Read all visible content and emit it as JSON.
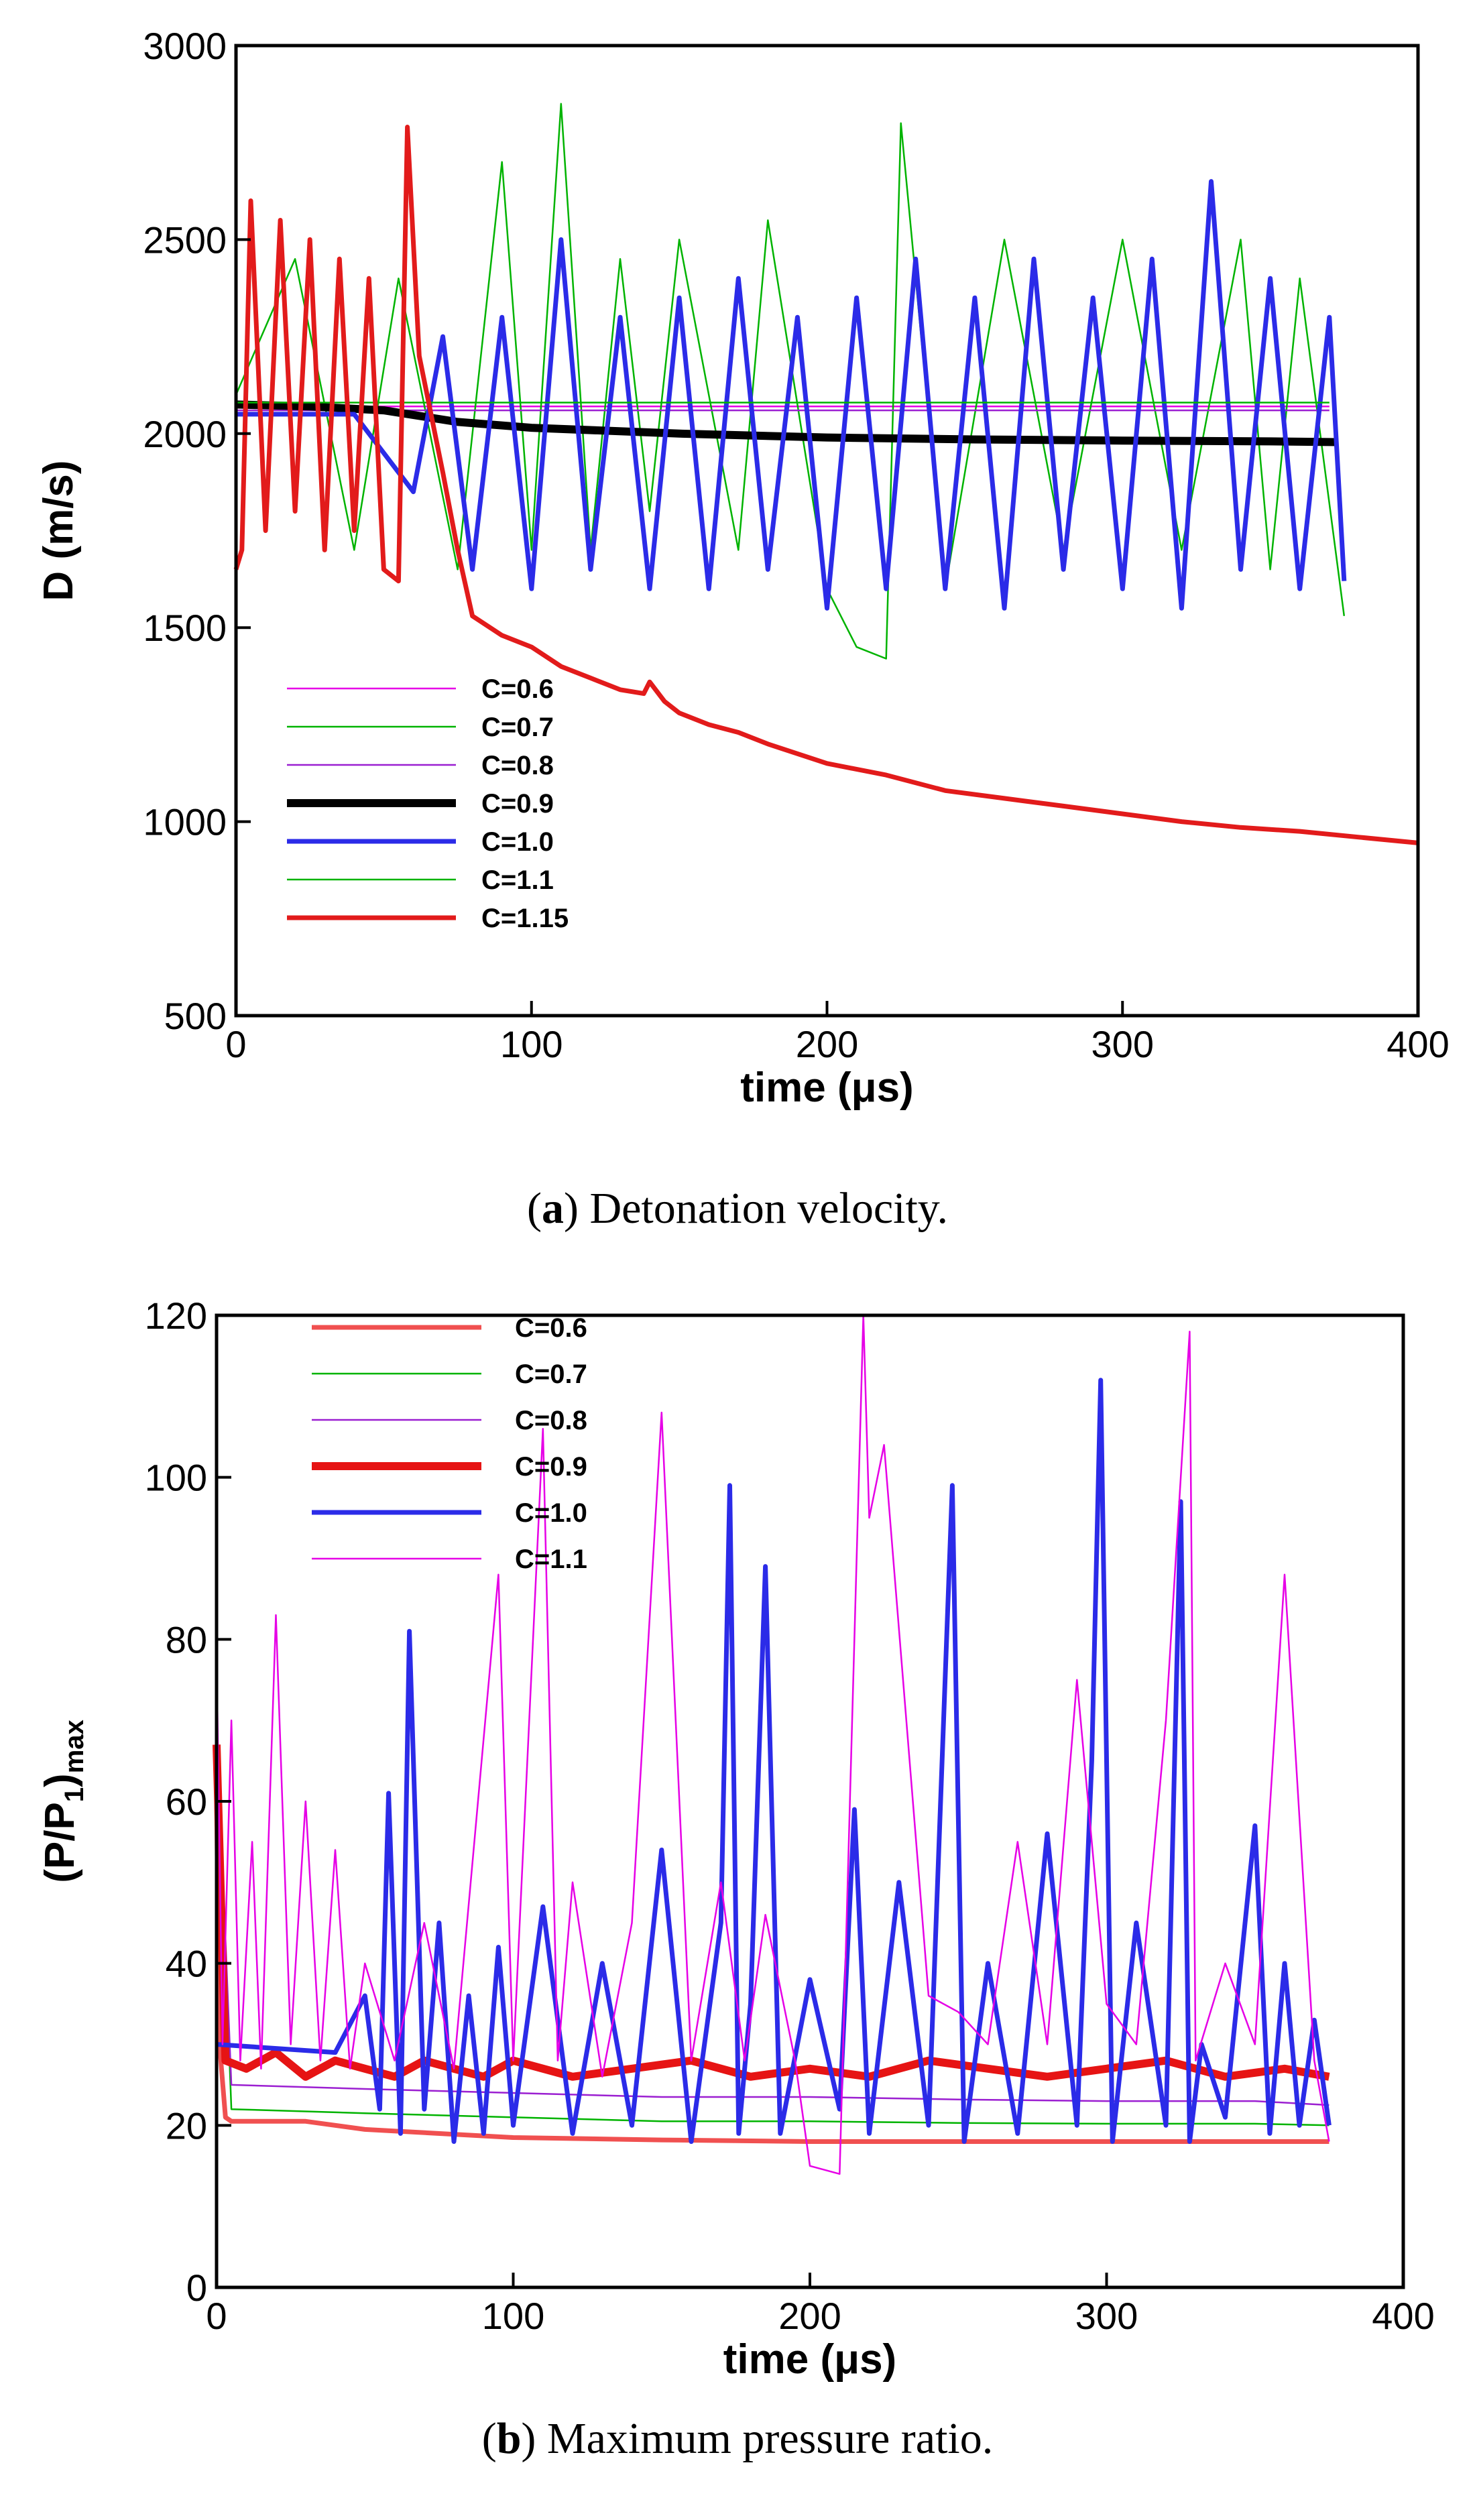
{
  "chart_data": [
    {
      "type": "line",
      "panel_letter": "a",
      "caption": "Detonation velocity.",
      "xlabel": "time (μs)",
      "ylabel": "D (m/s)",
      "xlim": [
        0,
        400
      ],
      "ylim": [
        500,
        3000
      ],
      "xticks": [
        "0",
        "100",
        "200",
        "300",
        "400"
      ],
      "yticks": [
        "500",
        "1000",
        "1500",
        "2000",
        "2500",
        "3000"
      ],
      "legend_position": "lower-left",
      "series": [
        {
          "name": "C=0.6",
          "color": "#e600e6",
          "style": "thin",
          "x": [
            0,
            370
          ],
          "y": [
            2070,
            2070
          ]
        },
        {
          "name": "C=0.7",
          "color": "#00b300",
          "style": "thin",
          "x": [
            0,
            20,
            40,
            55,
            75,
            90,
            100,
            110,
            120,
            130,
            140,
            150,
            170,
            180,
            200,
            210,
            220,
            225,
            240,
            260,
            280,
            300,
            320,
            340,
            350,
            360,
            375
          ],
          "y": [
            2100,
            2450,
            1700,
            2400,
            1650,
            2700,
            1700,
            2850,
            1700,
            2450,
            1800,
            2500,
            1700,
            2550,
            1600,
            1450,
            1420,
            2800,
            1600,
            2500,
            1700,
            2500,
            1700,
            2500,
            1650,
            2400,
            1530
          ]
        },
        {
          "name": "C=0.8",
          "color": "#9b1fd1",
          "style": "thin",
          "x": [
            0,
            370
          ],
          "y": [
            2060,
            2060
          ]
        },
        {
          "name": "C=0.9",
          "color": "#000000",
          "style": "thick",
          "x": [
            0,
            25,
            50,
            75,
            100,
            150,
            200,
            250,
            300,
            350,
            373
          ],
          "y": [
            2075,
            2070,
            2060,
            2030,
            2015,
            2000,
            1990,
            1985,
            1982,
            1980,
            1978
          ]
        },
        {
          "name": "C=1.0",
          "color": "#2b2be8",
          "style": "medium",
          "x": [
            0,
            40,
            60,
            70,
            80,
            90,
            100,
            110,
            120,
            130,
            140,
            150,
            160,
            170,
            180,
            190,
            200,
            210,
            220,
            230,
            240,
            250,
            260,
            270,
            280,
            290,
            300,
            310,
            320,
            330,
            340,
            350,
            360,
            370,
            375
          ],
          "y": [
            2050,
            2050,
            1850,
            2250,
            1650,
            2300,
            1600,
            2500,
            1650,
            2300,
            1600,
            2350,
            1600,
            2400,
            1650,
            2300,
            1550,
            2350,
            1600,
            2450,
            1600,
            2350,
            1550,
            2450,
            1650,
            2350,
            1600,
            2450,
            1550,
            2650,
            1650,
            2400,
            1600,
            2300,
            1620
          ]
        },
        {
          "name": "C=1.1",
          "color": "#00b300",
          "style": "thin",
          "x": [
            0,
            370
          ],
          "y": [
            2080,
            2080
          ]
        },
        {
          "name": "C=1.15",
          "color": "#e21b1b",
          "style": "medium",
          "x": [
            0,
            2,
            5,
            10,
            15,
            20,
            25,
            30,
            35,
            40,
            45,
            50,
            55,
            58,
            62,
            66,
            70,
            75,
            80,
            90,
            100,
            110,
            120,
            130,
            138,
            140,
            145,
            150,
            160,
            170,
            180,
            200,
            220,
            240,
            260,
            280,
            300,
            320,
            340,
            360,
            380,
            400
          ],
          "y": [
            1650,
            1700,
            2600,
            1750,
            2550,
            1800,
            2500,
            1700,
            2450,
            1750,
            2400,
            1650,
            1620,
            2790,
            2200,
            2050,
            1900,
            1700,
            1530,
            1480,
            1450,
            1400,
            1370,
            1340,
            1330,
            1360,
            1310,
            1280,
            1250,
            1230,
            1200,
            1150,
            1120,
            1080,
            1060,
            1040,
            1020,
            1000,
            985,
            975,
            960,
            945
          ]
        }
      ]
    },
    {
      "type": "line",
      "panel_letter": "b",
      "caption": "Maximum pressure ratio.",
      "xlabel": "time (μs)",
      "ylabel_main": "(P/P",
      "ylabel_sub1": "1",
      "ylabel_close": ")",
      "ylabel_sub2": "max",
      "xlim": [
        0,
        400
      ],
      "ylim": [
        0,
        120
      ],
      "xticks": [
        "0",
        "100",
        "200",
        "300",
        "400"
      ],
      "yticks": [
        "0",
        "20",
        "40",
        "60",
        "80",
        "100",
        "120"
      ],
      "legend_position": "top-left",
      "series": [
        {
          "name": "C=0.6",
          "color": "#f05050",
          "style": "medium",
          "x": [
            0,
            1,
            3,
            5,
            30,
            50,
            100,
            150,
            200,
            250,
            300,
            350,
            375
          ],
          "y": [
            60,
            30,
            21,
            20.5,
            20.5,
            19.5,
            18.5,
            18.2,
            18,
            18,
            18,
            18,
            18
          ]
        },
        {
          "name": "C=0.7",
          "color": "#00b300",
          "style": "thin",
          "x": [
            0,
            5,
            50,
            100,
            150,
            200,
            250,
            300,
            350,
            375
          ],
          "y": [
            70,
            22,
            21.5,
            21,
            20.5,
            20.5,
            20.3,
            20.2,
            20.2,
            20
          ]
        },
        {
          "name": "C=0.8",
          "color": "#9b1fd1",
          "style": "thin",
          "x": [
            0,
            5,
            50,
            100,
            150,
            200,
            250,
            300,
            350,
            375
          ],
          "y": [
            70,
            25,
            24.5,
            24,
            23.5,
            23.5,
            23.2,
            23,
            23,
            22.5
          ]
        },
        {
          "name": "C=0.9",
          "color": "#e61414",
          "style": "thick",
          "x": [
            0,
            3,
            10,
            20,
            30,
            40,
            50,
            60,
            70,
            80,
            90,
            100,
            120,
            140,
            160,
            180,
            200,
            220,
            240,
            260,
            280,
            300,
            320,
            340,
            360,
            375
          ],
          "y": [
            67,
            28,
            27,
            29,
            26,
            28,
            27,
            26,
            28,
            27,
            26,
            28,
            26,
            27,
            28,
            26,
            27,
            26,
            28,
            27,
            26,
            27,
            28,
            26,
            27,
            26
          ]
        },
        {
          "name": "C=1.0",
          "color": "#2b2be8",
          "style": "medium",
          "x": [
            0,
            40,
            50,
            55,
            58,
            62,
            65,
            70,
            75,
            80,
            85,
            90,
            95,
            100,
            110,
            120,
            130,
            140,
            150,
            160,
            170,
            173,
            176,
            180,
            185,
            190,
            200,
            210,
            215,
            220,
            230,
            240,
            248,
            252,
            260,
            270,
            280,
            290,
            295,
            298,
            302,
            310,
            320,
            325,
            328,
            332,
            340,
            350,
            355,
            360,
            365,
            370,
            375
          ],
          "y": [
            30,
            29,
            36,
            22,
            61,
            19,
            81,
            22,
            45,
            18,
            36,
            19,
            42,
            20,
            47,
            19,
            40,
            20,
            54,
            18,
            45,
            99,
            19,
            35,
            89,
            19,
            38,
            22,
            59,
            19,
            50,
            20,
            99,
            18,
            40,
            19,
            56,
            20,
            65,
            112,
            18,
            45,
            20,
            97,
            18,
            30,
            21,
            57,
            19,
            40,
            20,
            33,
            20
          ]
        },
        {
          "name": "C=1.1",
          "color": "#e600e6",
          "style": "thin",
          "x": [
            0,
            2,
            5,
            8,
            12,
            15,
            20,
            25,
            30,
            35,
            40,
            45,
            50,
            60,
            70,
            80,
            95,
            100,
            110,
            115,
            120,
            130,
            140,
            150,
            160,
            170,
            178,
            185,
            195,
            200,
            210,
            218,
            220,
            225,
            240,
            250,
            260,
            270,
            280,
            290,
            300,
            310,
            320,
            328,
            330,
            340,
            350,
            360,
            370,
            375
          ],
          "y": [
            78,
            30,
            70,
            28,
            55,
            27,
            83,
            30,
            60,
            28,
            54,
            27,
            40,
            28,
            45,
            27,
            88,
            28,
            106,
            28,
            50,
            26,
            45,
            108,
            28,
            50,
            28,
            46,
            28,
            15,
            14,
            120,
            95,
            104,
            36,
            34,
            30,
            55,
            30,
            75,
            35,
            30,
            70,
            118,
            28,
            40,
            30,
            88,
            28,
            18
          ]
        }
      ]
    }
  ]
}
